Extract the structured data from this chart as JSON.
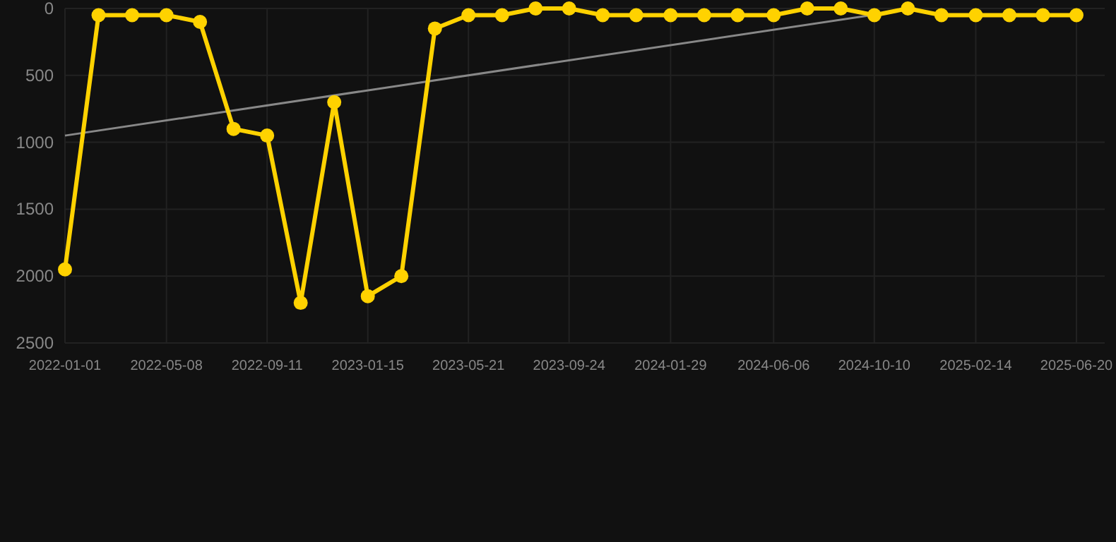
{
  "chart_data": {
    "type": "line",
    "x": [
      "2022-01-01",
      "2022-02-12",
      "2022-03-26",
      "2022-05-08",
      "2022-06-19",
      "2022-07-31",
      "2022-09-11",
      "2022-10-23",
      "2022-12-04",
      "2023-01-15",
      "2023-02-26",
      "2023-04-09",
      "2023-05-21",
      "2023-07-02",
      "2023-08-13",
      "2023-09-24",
      "2023-11-05",
      "2023-12-17",
      "2024-01-29",
      "2024-03-11",
      "2024-04-22",
      "2024-06-06",
      "2024-07-18",
      "2024-08-29",
      "2024-10-10",
      "2024-11-21",
      "2025-01-02",
      "2025-02-14",
      "2025-03-28",
      "2025-05-09",
      "2025-06-20"
    ],
    "series": [
      {
        "color": "#ffd200",
        "marker": "circle",
        "values": [
          1950,
          50,
          50,
          50,
          100,
          900,
          950,
          2200,
          700,
          2150,
          2000,
          150,
          50,
          50,
          0,
          0,
          50,
          50,
          50,
          50,
          50,
          50,
          0,
          0,
          50,
          0,
          50,
          50,
          50,
          50,
          50
        ]
      },
      {
        "color": "#888888",
        "marker": "none",
        "x": [
          "2022-01-01",
          "2024-12-01"
        ],
        "values": [
          950,
          0
        ]
      }
    ],
    "ylim": [
      2500,
      0
    ],
    "yticks": [
      0,
      500,
      1000,
      1500,
      2000,
      2500
    ],
    "xlim": [
      "2022-01-01",
      "2025-06-20"
    ],
    "xticks": [
      "2022-01-01",
      "2022-05-08",
      "2022-09-11",
      "2023-01-15",
      "2023-05-21",
      "2023-09-24",
      "2024-01-29",
      "2024-06-06",
      "2024-10-10",
      "2025-02-14",
      "2025-06-20"
    ],
    "grid": true
  }
}
